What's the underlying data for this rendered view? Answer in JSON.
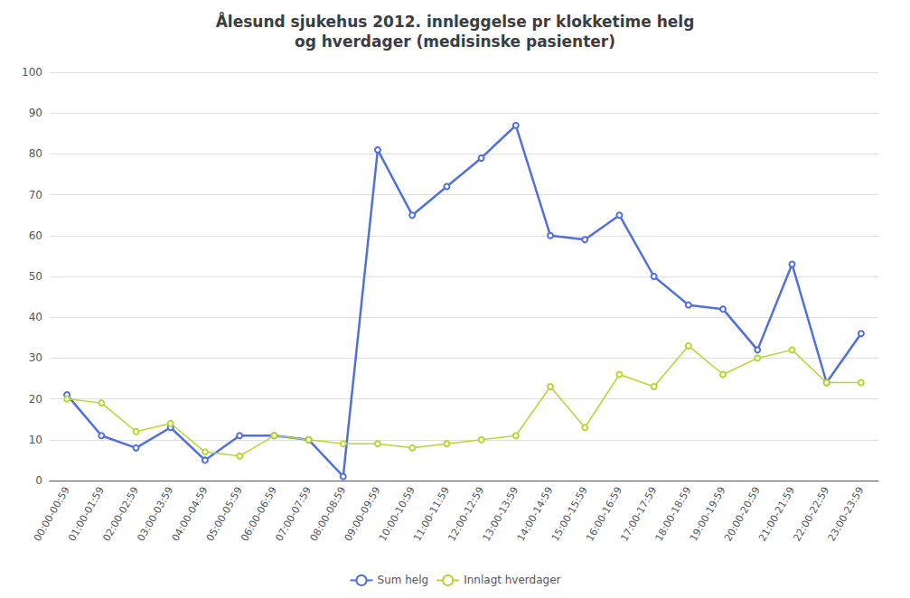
{
  "chart_data": {
    "type": "line",
    "title": "Ålesund sjukehus 2012. innleggelse pr klokketime helg\nog hverdager (medisinske pasienter)",
    "categories": [
      "00:00-00:59",
      "01:00-01:59",
      "02:00-02:59",
      "03:00-03:59",
      "04:00-04:59",
      "05:00-05:59",
      "06:00-06:59",
      "07:00-07:59",
      "08:00-08:59",
      "09:00-09:59",
      "10:00-10:59",
      "11:00-11:59",
      "12:00-12:59",
      "13:00-13:59",
      "14:00-14:59",
      "15:00-15:59",
      "16:00-16:59",
      "17:00-17:59",
      "18:00-18:59",
      "19:00-19:59",
      "20:00-20:59",
      "21:00-21:59",
      "22:00-22:59",
      "23:00-23:59"
    ],
    "series": [
      {
        "name": "Sum helg",
        "values": [
          21,
          11,
          8,
          13,
          5,
          11,
          11,
          10,
          1,
          81,
          65,
          72,
          79,
          87,
          60,
          59,
          65,
          50,
          43,
          42,
          32,
          53,
          24,
          36
        ]
      },
      {
        "name": "Innlagt hverdager",
        "values": [
          20,
          19,
          12,
          14,
          7,
          6,
          11,
          10,
          9,
          9,
          8,
          9,
          10,
          11,
          23,
          13,
          26,
          23,
          33,
          26,
          30,
          32,
          24,
          24
        ]
      }
    ],
    "ylim": [
      0,
      100
    ],
    "yticks": [
      0,
      10,
      20,
      30,
      40,
      50,
      60,
      70,
      80,
      90,
      100
    ],
    "grid": true,
    "legend": "bottom"
  }
}
